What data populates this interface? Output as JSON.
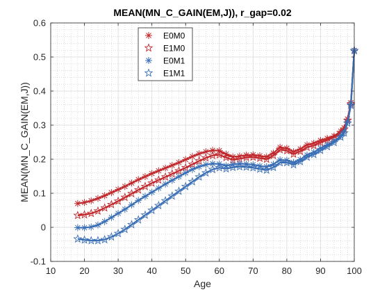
{
  "chart_data": {
    "type": "line",
    "title": "MEAN(MN_C_GAIN(EM,J)), r_gap=0.02",
    "xlabel": "Age",
    "ylabel": "MEAN(MN_C_GAIN(EM,J))",
    "xlim": [
      10,
      100
    ],
    "ylim": [
      -0.1,
      0.6
    ],
    "xticks": [
      "10",
      "20",
      "30",
      "40",
      "50",
      "60",
      "70",
      "80",
      "90",
      "100"
    ],
    "yticks": [
      "-0.1",
      "0",
      "0.1",
      "0.2",
      "0.3",
      "0.4",
      "0.5",
      "0.6"
    ],
    "grid": true,
    "minor_grid": true,
    "legend_position": "top-left",
    "x": [
      18,
      20,
      22,
      24,
      26,
      28,
      30,
      32,
      34,
      36,
      38,
      40,
      42,
      44,
      46,
      48,
      50,
      52,
      54,
      56,
      58,
      60,
      62,
      64,
      66,
      68,
      70,
      72,
      74,
      76,
      78,
      80,
      82,
      84,
      86,
      88,
      90,
      92,
      94,
      96,
      97,
      98,
      99,
      100
    ],
    "series": [
      {
        "name": "E0M0",
        "color": "#C0282D",
        "marker": "asterisk",
        "values": [
          0.07,
          0.073,
          0.078,
          0.085,
          0.093,
          0.102,
          0.111,
          0.12,
          0.13,
          0.14,
          0.149,
          0.158,
          0.166,
          0.174,
          0.182,
          0.19,
          0.199,
          0.208,
          0.216,
          0.222,
          0.226,
          0.225,
          0.215,
          0.207,
          0.209,
          0.212,
          0.213,
          0.21,
          0.207,
          0.218,
          0.235,
          0.232,
          0.222,
          0.23,
          0.242,
          0.247,
          0.255,
          0.261,
          0.268,
          0.282,
          0.292,
          0.318,
          0.366,
          0.519
        ]
      },
      {
        "name": "E1M0",
        "color": "#C0282D",
        "marker": "star",
        "values": [
          0.035,
          0.037,
          0.041,
          0.048,
          0.057,
          0.067,
          0.077,
          0.088,
          0.099,
          0.11,
          0.12,
          0.13,
          0.139,
          0.148,
          0.157,
          0.166,
          0.175,
          0.185,
          0.195,
          0.204,
          0.211,
          0.213,
          0.205,
          0.198,
          0.201,
          0.205,
          0.206,
          0.203,
          0.2,
          0.211,
          0.228,
          0.225,
          0.215,
          0.223,
          0.235,
          0.24,
          0.249,
          0.256,
          0.264,
          0.278,
          0.288,
          0.314,
          0.362,
          0.519
        ]
      },
      {
        "name": "E0M1",
        "color": "#3A6EB5",
        "marker": "asterisk",
        "values": [
          -0.001,
          -0.001,
          0.001,
          0.007,
          0.017,
          0.029,
          0.041,
          0.053,
          0.066,
          0.079,
          0.091,
          0.103,
          0.115,
          0.127,
          0.138,
          0.149,
          0.16,
          0.17,
          0.178,
          0.184,
          0.187,
          0.186,
          0.181,
          0.185,
          0.187,
          0.186,
          0.184,
          0.18,
          0.178,
          0.185,
          0.198,
          0.197,
          0.19,
          0.199,
          0.212,
          0.22,
          0.232,
          0.242,
          0.253,
          0.268,
          0.28,
          0.31,
          0.362,
          0.519
        ]
      },
      {
        "name": "E1M1",
        "color": "#3A6EB5",
        "marker": "star",
        "values": [
          -0.034,
          -0.037,
          -0.039,
          -0.039,
          -0.036,
          -0.028,
          -0.018,
          -0.006,
          0.008,
          0.022,
          0.036,
          0.05,
          0.064,
          0.078,
          0.092,
          0.106,
          0.12,
          0.134,
          0.148,
          0.16,
          0.17,
          0.175,
          0.172,
          0.176,
          0.178,
          0.177,
          0.175,
          0.171,
          0.168,
          0.176,
          0.19,
          0.19,
          0.184,
          0.193,
          0.206,
          0.214,
          0.226,
          0.237,
          0.249,
          0.265,
          0.277,
          0.306,
          0.358,
          0.519
        ]
      }
    ]
  }
}
